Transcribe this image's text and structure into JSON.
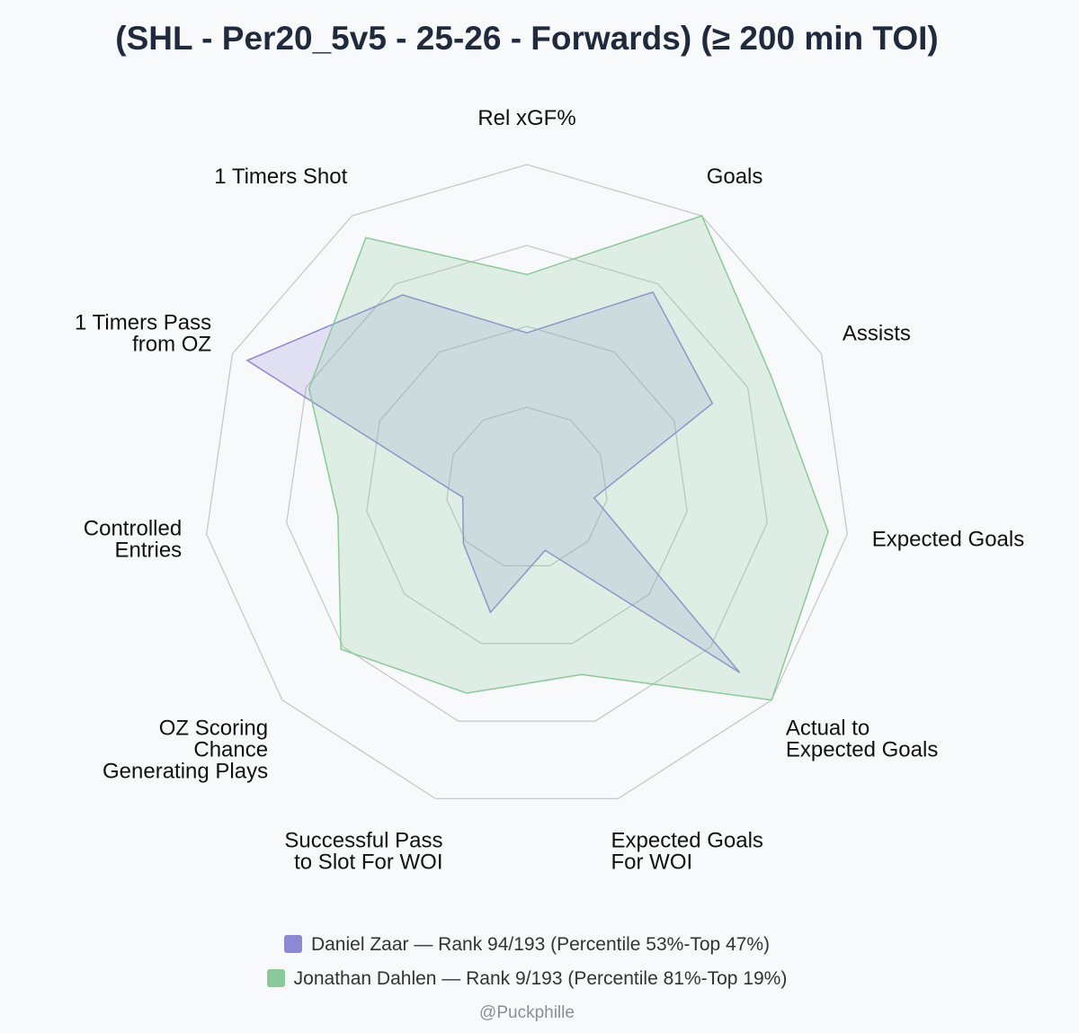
{
  "chart_data": {
    "type": "radar",
    "title": "(SHL - Per20_5v5 - 25-26 - Forwards) (≥ 200 min TOI)",
    "axes": [
      [
        "Rel xGF%"
      ],
      [
        "Goals"
      ],
      [
        "Assists"
      ],
      [
        "Expected Goals"
      ],
      [
        "Actual to",
        "Expected Goals"
      ],
      [
        "Expected Goals",
        "For WOI"
      ],
      [
        "Successful Pass",
        "to Slot For WOI"
      ],
      [
        "OZ Scoring",
        "Chance",
        "Generating Plays"
      ],
      [
        "Controlled",
        "Entries"
      ],
      [
        "1 Timers Pass",
        "from OZ"
      ],
      [
        "1 Timers Shot"
      ]
    ],
    "rlim": [
      0,
      100
    ],
    "grid_levels": [
      25,
      50,
      75,
      100
    ],
    "series": [
      {
        "name": "Daniel Zaar",
        "color": "#8c88d4",
        "fill": "rgba(140,136,212,0.22)",
        "values": [
          48,
          72,
          63,
          21,
          87,
          20,
          40,
          26,
          20,
          95,
          71
        ]
      },
      {
        "name": "Jonathan Dahlen",
        "color": "#8cc99a",
        "fill": "rgba(140,201,154,0.23)",
        "values": [
          66,
          100,
          83,
          94,
          100,
          60,
          66,
          76,
          59,
          74,
          92
        ]
      }
    ]
  },
  "legend": [
    {
      "text": "Daniel Zaar — Rank 94/193 (Percentile 53%-Top 47%)",
      "color": "#8c88d4"
    },
    {
      "text": "Jonathan Dahlen — Rank 9/193 (Percentile 81%-Top 19%)",
      "color": "#8cc99a"
    }
  ],
  "credit": "@Puckphille"
}
